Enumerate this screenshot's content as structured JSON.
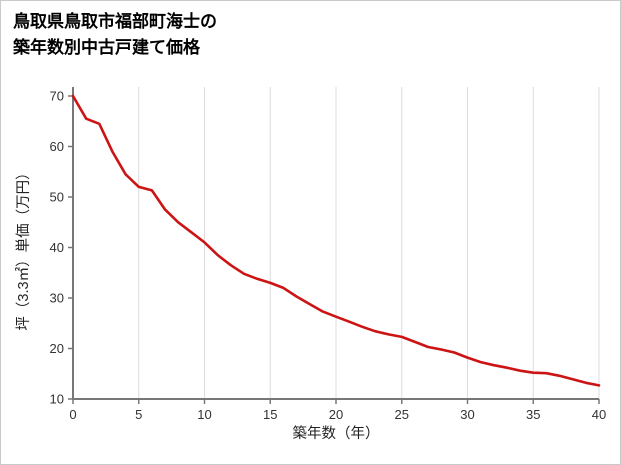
{
  "page": {
    "background": "#ffffff",
    "border_color": "#c9c9c9"
  },
  "title": {
    "line1": "鳥取県鳥取市福部町海士の",
    "line2": "築年数別中古戸建て価格"
  },
  "chart_data": {
    "type": "line",
    "title": "鳥取県鳥取市福部町海士の築年数別中古戸建て価格",
    "xlabel": "築年数（年）",
    "ylabel": "坪（3.3㎡）単価（万円）",
    "x": [
      0,
      1,
      2,
      3,
      4,
      5,
      6,
      7,
      8,
      9,
      10,
      11,
      12,
      13,
      14,
      15,
      16,
      17,
      18,
      19,
      20,
      21,
      22,
      23,
      24,
      25,
      26,
      27,
      28,
      29,
      30,
      31,
      32,
      33,
      34,
      35,
      36,
      37,
      38,
      39,
      40
    ],
    "values": [
      70,
      65.5,
      64.5,
      59,
      54.5,
      52,
      51.3,
      47.5,
      45,
      43,
      41,
      38.5,
      36.5,
      34.8,
      33.8,
      33,
      32,
      30.3,
      28.8,
      27.3,
      26.3,
      25.3,
      24.3,
      23.4,
      22.8,
      22.3,
      21.3,
      20.3,
      19.8,
      19.2,
      18.2,
      17.3,
      16.7,
      16.2,
      15.6,
      15.2,
      15.1,
      14.6,
      13.9,
      13.2,
      12.7
    ],
    "x_ticks": [
      0,
      5,
      10,
      15,
      20,
      25,
      30,
      35,
      40
    ],
    "y_ticks": [
      10,
      20,
      30,
      40,
      50,
      60,
      70
    ],
    "xlim": [
      0,
      40
    ],
    "ylim": [
      10,
      70
    ],
    "grid": "vertical-only",
    "legend": "none",
    "line_color": "#cc1414",
    "grid_color": "#dcdcdc",
    "axis_color": "#777777",
    "tick_label_color": "#333333"
  }
}
